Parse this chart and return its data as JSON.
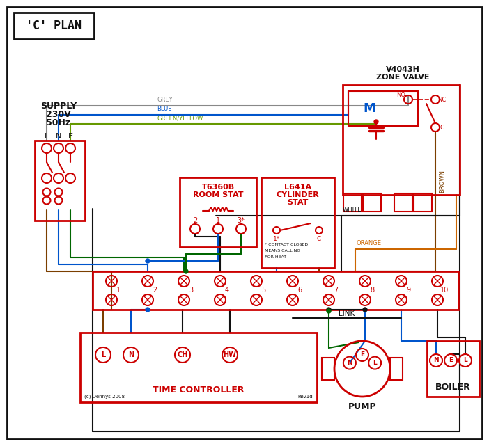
{
  "title": "'C' PLAN",
  "RED": "#cc0000",
  "BLUE": "#0055cc",
  "GREEN": "#006600",
  "GREY": "#888888",
  "BROWN": "#7B3F00",
  "ORANGE": "#cc6600",
  "BLACK": "#111111",
  "GY": "#669900",
  "supply1": "SUPPLY",
  "supply2": "230V",
  "supply3": "50Hz",
  "lne": "L  N  E",
  "zone_v1": "V4043H",
  "zone_v2": "ZONE VALVE",
  "rs1": "T6360B",
  "rs2": "ROOM STAT",
  "cs1": "L641A",
  "cs2": "CYLINDER",
  "cs3": "STAT",
  "cs_note1": "* CONTACT CLOSED",
  "cs_note2": "MEANS CALLING",
  "cs_note3": "FOR HEAT",
  "tc_lbl": "TIME CONTROLLER",
  "pump_lbl": "PUMP",
  "boiler_lbl": "BOILER",
  "link_lbl": "LINK",
  "grey_lbl": "GREY",
  "blue_lbl": "BLUE",
  "gy_lbl": "GREEN/YELLOW",
  "brown_lbl": "BROWN",
  "white_lbl": "WHITE",
  "orange_lbl": "ORANGE",
  "copyright": "(c) Dennys 2008",
  "rev": "Rev1d"
}
